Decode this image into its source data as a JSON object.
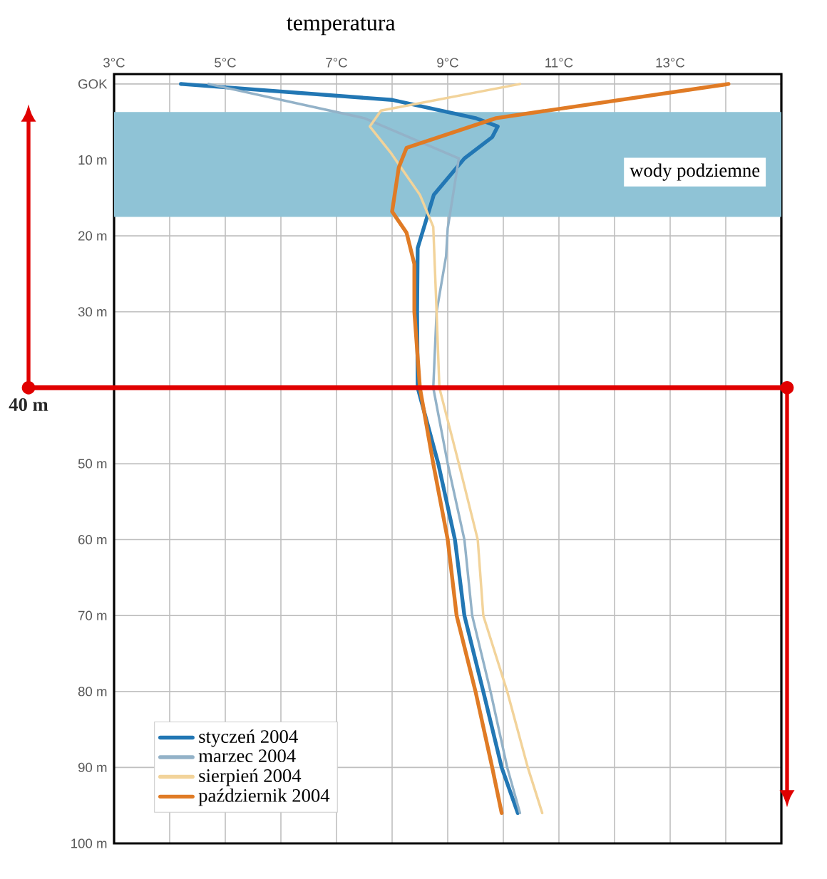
{
  "chart_data": {
    "type": "line",
    "title": "temperatura",
    "xlim": [
      3,
      15
    ],
    "ylim": [
      100,
      -1.3
    ],
    "xticks": [
      {
        "value": 3,
        "label": "3°C"
      },
      {
        "value": 4,
        "label": null
      },
      {
        "value": 5,
        "label": "5°C"
      },
      {
        "value": 6,
        "label": null
      },
      {
        "value": 7,
        "label": "7°C"
      },
      {
        "value": 8,
        "label": null
      },
      {
        "value": 9,
        "label": "9°C"
      },
      {
        "value": 10,
        "label": null
      },
      {
        "value": 11,
        "label": "11°C"
      },
      {
        "value": 12,
        "label": null
      },
      {
        "value": 13,
        "label": "13°C"
      },
      {
        "value": 14,
        "label": null
      }
    ],
    "yticks": [
      {
        "value": 0,
        "label": "GOK"
      },
      {
        "value": 10,
        "label": "10 m"
      },
      {
        "value": 20,
        "label": "20 m"
      },
      {
        "value": 30,
        "label": "30 m"
      },
      {
        "value": 40,
        "label": null
      },
      {
        "value": 50,
        "label": "50 m"
      },
      {
        "value": 60,
        "label": "60 m"
      },
      {
        "value": 70,
        "label": "70 m"
      },
      {
        "value": 80,
        "label": "80 m"
      },
      {
        "value": 90,
        "label": "90 m"
      },
      {
        "value": 100,
        "label": "100 m"
      }
    ],
    "grid": true,
    "legend": "bottom left",
    "marker": "none",
    "line_style": "solid",
    "bands": [
      {
        "axis": "y",
        "from": 3.7,
        "to": 17.5,
        "label": "wody podziemne",
        "color": "#8fc3d6"
      }
    ],
    "ref_lines": [
      {
        "axis": "y",
        "value": 40,
        "label": "40 m",
        "color": "#e00000"
      }
    ],
    "series": [
      {
        "name": "styczeń 2004",
        "color": "#2277b4",
        "x": [
          4.2,
          8.0,
          9.5,
          9.9,
          9.8,
          9.3,
          8.75,
          8.46,
          8.45,
          8.46,
          8.83,
          9.13,
          9.3,
          9.64,
          9.97,
          10.26
        ],
        "values": [
          0,
          2.1,
          4.5,
          5.6,
          7,
          9.8,
          14.6,
          21.6,
          30,
          40,
          50,
          60,
          70,
          80,
          90,
          96
        ]
      },
      {
        "name": "marzec 2004",
        "color": "#93b2c8",
        "x": [
          4.7,
          7.5,
          9.2,
          9.0,
          8.97,
          8.8,
          8.74,
          9.0,
          9.3,
          9.44,
          9.77,
          10.07,
          10.3
        ],
        "values": [
          0,
          4.5,
          9.8,
          19,
          22.7,
          30,
          40,
          50,
          60,
          70,
          80,
          90,
          96
        ]
      },
      {
        "name": "sierpień 2004",
        "color": "#f2d39a",
        "x": [
          10.3,
          7.8,
          7.6,
          7.97,
          8.5,
          8.74,
          8.8,
          8.85,
          9.2,
          9.54,
          9.64,
          10.07,
          10.44,
          10.7
        ],
        "values": [
          0,
          3.5,
          5.6,
          9,
          14.6,
          18.8,
          30,
          40,
          50,
          60,
          70,
          80,
          90,
          96
        ]
      },
      {
        "name": "październik 2004",
        "color": "#e07b25",
        "x": [
          14.05,
          9.87,
          8.26,
          8.12,
          8.0,
          8.26,
          8.4,
          8.4,
          8.5,
          8.74,
          9.0,
          9.16,
          9.5,
          9.8,
          9.97
        ],
        "values": [
          0,
          4.5,
          8.4,
          11,
          16.8,
          19.6,
          23.7,
          30,
          40,
          50,
          60,
          70,
          80,
          90,
          96
        ]
      }
    ]
  }
}
